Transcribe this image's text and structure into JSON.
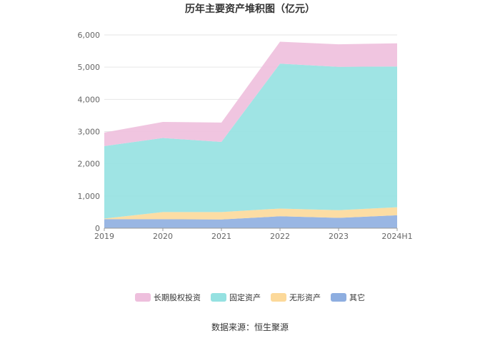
{
  "chart_data": {
    "type": "area",
    "stacked": true,
    "title": "历年主要资产堆积图（亿元）",
    "x": [
      "2019",
      "2020",
      "2021",
      "2022",
      "2023",
      "2024H1"
    ],
    "ylim": [
      0,
      6000
    ],
    "yticks": [
      "0",
      "1,000",
      "2,000",
      "3,000",
      "4,000",
      "5,000",
      "6,000"
    ],
    "grid": true,
    "legend_position": "bottom",
    "series": [
      {
        "name": "其它",
        "color": "#8eaee0",
        "values": [
          280,
          280,
          270,
          370,
          320,
          400
        ]
      },
      {
        "name": "无形资产",
        "color": "#fcd99a",
        "values": [
          20,
          220,
          230,
          240,
          240,
          250
        ]
      },
      {
        "name": "固定资产",
        "color": "#95e1e1",
        "values": [
          2250,
          2300,
          2180,
          4500,
          4450,
          4370
        ]
      },
      {
        "name": "长期股权投资",
        "color": "#eebfdd",
        "values": [
          420,
          500,
          600,
          680,
          700,
          720
        ]
      }
    ],
    "legend_order": [
      "长期股权投资",
      "固定资产",
      "无形资产",
      "其它"
    ]
  },
  "source_text": "数据来源：恒生聚源"
}
